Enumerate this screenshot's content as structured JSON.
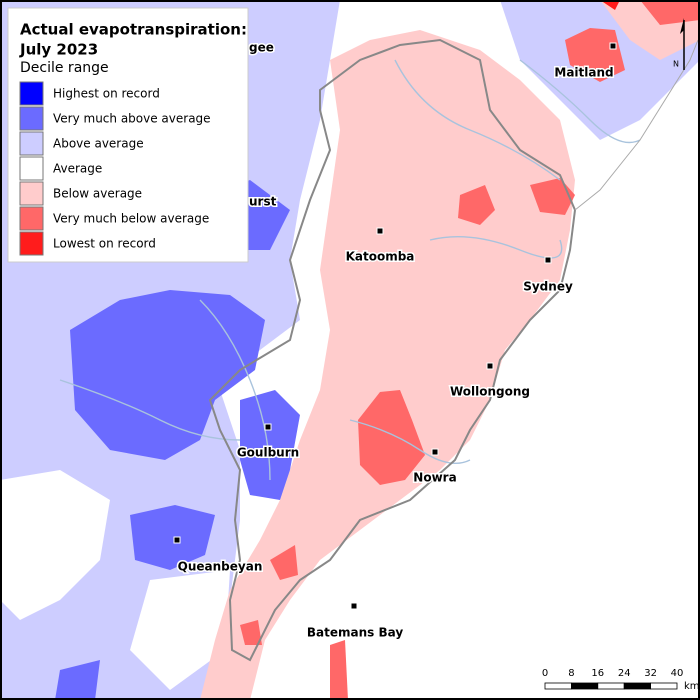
{
  "legend": {
    "title_lines": [
      "Actual evapotranspiration:",
      "July 2023"
    ],
    "subtitle": "Decile range",
    "items": [
      {
        "label": "Highest on record",
        "color": "#0000ff"
      },
      {
        "label": "Very much above average",
        "color": "#6b6bff"
      },
      {
        "label": "Above average",
        "color": "#cdcdff"
      },
      {
        "label": "Average",
        "color": "#ffffff"
      },
      {
        "label": "Below average",
        "color": "#ffcccc"
      },
      {
        "label": "Very much below average",
        "color": "#ff6868"
      },
      {
        "label": "Lowest on record",
        "color": "#ff1c1c"
      }
    ]
  },
  "places": [
    "Maitland",
    "Katoomba",
    "Sydney",
    "Wollongong",
    "Goulburn",
    "Nowra",
    "Queanbeyan",
    "Batemans Bay"
  ],
  "partial_labels": [
    "gee",
    "urst"
  ],
  "scale_bar": {
    "ticks": [
      0,
      8,
      16,
      24,
      32,
      40
    ],
    "unit": "km"
  },
  "north": "N"
}
